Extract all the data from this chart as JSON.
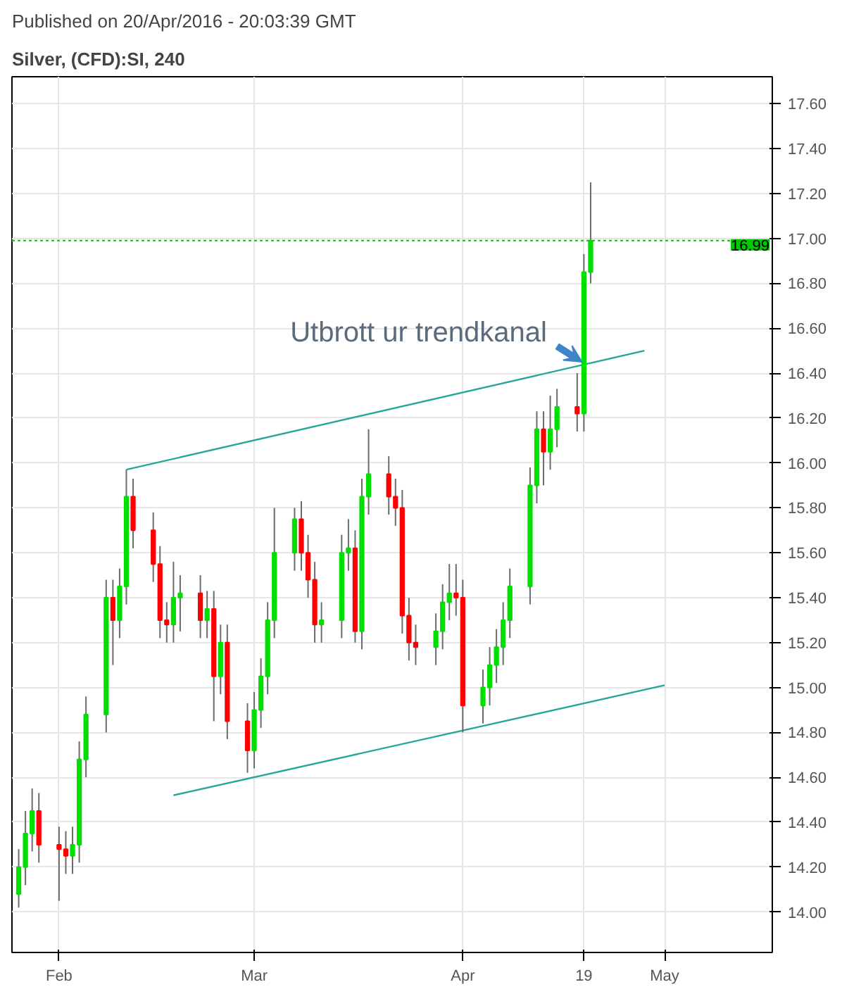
{
  "chart_data": {
    "type": "candlestick",
    "title": "Published on 20/Apr/2016 - 20:03:39 GMT",
    "subtitle": "Silver, (CFD):SI, 240",
    "colors": [
      "#00e000",
      "#00e000",
      "#00e000",
      "#ff0000",
      "#ff0000",
      "#ff0000",
      "#00e000",
      "#00e000",
      "#00e000",
      "#00e000",
      "#ff0000",
      "#00e000",
      "#00e000",
      "#ff0000",
      "#ff0000",
      "#ff0000",
      "#ff0000",
      "#00e000",
      "#00e000",
      "#ff0000",
      "#00e000",
      "#ff0000",
      "#00e000",
      "#ff0000",
      "#ff0000",
      "#00e000",
      "#00e000",
      "#00e000",
      "#00e000",
      "#00e000",
      "#ff0000",
      "#ff0000",
      "#ff0000",
      "#00e000",
      "#00e000",
      "#00e000",
      "#ff0000",
      "#00e000",
      "#00e000",
      "#ff0000",
      "#ff0000",
      "#ff0000",
      "#ff0000",
      "#ff0000",
      "#00e000",
      "#00e000",
      "#00e000",
      "#ff0000",
      "#ff0000",
      "#00e000",
      "#00e000",
      "#00e000",
      "#00e000",
      "#00e000",
      "#00e000",
      "#00e000",
      "#ff0000",
      "#00e000",
      "#00e000",
      "#ff0000",
      "#00e000",
      "#00e000"
    ],
    "x": [
      "2016-01-26",
      "2016-01-27",
      "2016-01-28",
      "2016-01-29",
      "2016-02-01",
      "2016-02-02",
      "2016-02-03",
      "2016-02-04",
      "2016-02-05",
      "2016-02-08",
      "2016-02-09",
      "2016-02-10",
      "2016-02-11",
      "2016-02-12",
      "2016-02-15",
      "2016-02-16",
      "2016-02-17",
      "2016-02-18",
      "2016-02-19",
      "2016-02-22",
      "2016-02-23",
      "2016-02-24",
      "2016-02-25",
      "2016-02-26",
      "2016-02-29",
      "2016-03-01",
      "2016-03-02",
      "2016-03-03",
      "2016-03-04",
      "2016-03-07",
      "2016-03-08",
      "2016-03-09",
      "2016-03-10",
      "2016-03-11",
      "2016-03-14",
      "2016-03-15",
      "2016-03-16",
      "2016-03-17",
      "2016-03-18",
      "2016-03-21",
      "2016-03-22",
      "2016-03-23",
      "2016-03-24",
      "2016-03-25",
      "2016-03-28",
      "2016-03-29",
      "2016-03-30",
      "2016-03-31",
      "2016-04-01",
      "2016-04-04",
      "2016-04-05",
      "2016-04-06",
      "2016-04-07",
      "2016-04-08",
      "2016-04-11",
      "2016-04-12",
      "2016-04-13",
      "2016-04-14",
      "2016-04-15",
      "2016-04-18",
      "2016-04-19",
      "2016-04-20"
    ],
    "ohlc": [
      [
        14.08,
        14.28,
        14.02,
        14.2
      ],
      [
        14.2,
        14.45,
        14.12,
        14.35
      ],
      [
        14.35,
        14.55,
        14.27,
        14.45
      ],
      [
        14.45,
        14.53,
        14.22,
        14.3
      ],
      [
        14.3,
        14.38,
        14.05,
        14.28
      ],
      [
        14.28,
        14.36,
        14.17,
        14.25
      ],
      [
        14.25,
        14.38,
        14.17,
        14.3
      ],
      [
        14.3,
        14.76,
        14.22,
        14.68
      ],
      [
        14.68,
        14.96,
        14.6,
        14.88
      ],
      [
        14.88,
        15.48,
        14.8,
        15.4
      ],
      [
        15.4,
        15.48,
        15.1,
        15.3
      ],
      [
        15.3,
        15.53,
        15.22,
        15.45
      ],
      [
        15.45,
        15.97,
        15.37,
        15.85
      ],
      [
        15.85,
        15.93,
        15.62,
        15.7
      ],
      [
        15.7,
        15.78,
        15.47,
        15.55
      ],
      [
        15.55,
        15.63,
        15.22,
        15.3
      ],
      [
        15.3,
        15.38,
        15.2,
        15.28
      ],
      [
        15.28,
        15.56,
        15.2,
        15.4
      ],
      [
        15.4,
        15.5,
        15.25,
        15.42
      ],
      [
        15.42,
        15.5,
        15.22,
        15.3
      ],
      [
        15.3,
        15.43,
        15.22,
        15.35
      ],
      [
        15.35,
        15.43,
        14.85,
        15.05
      ],
      [
        15.05,
        15.28,
        14.97,
        15.2
      ],
      [
        15.2,
        15.28,
        14.77,
        14.85
      ],
      [
        14.85,
        14.93,
        14.62,
        14.72
      ],
      [
        14.72,
        14.98,
        14.64,
        14.9
      ],
      [
        14.9,
        15.13,
        14.82,
        15.05
      ],
      [
        15.05,
        15.38,
        14.97,
        15.3
      ],
      [
        15.3,
        15.8,
        15.22,
        15.6
      ],
      [
        15.6,
        15.8,
        15.52,
        15.75
      ],
      [
        15.75,
        15.83,
        15.52,
        15.6
      ],
      [
        15.6,
        15.68,
        15.4,
        15.48
      ],
      [
        15.48,
        15.56,
        15.2,
        15.28
      ],
      [
        15.28,
        15.38,
        15.2,
        15.3
      ],
      [
        15.3,
        15.68,
        15.22,
        15.6
      ],
      [
        15.6,
        15.75,
        15.52,
        15.62
      ],
      [
        15.62,
        15.7,
        15.2,
        15.25
      ],
      [
        15.25,
        15.93,
        15.17,
        15.85
      ],
      [
        15.85,
        16.15,
        15.77,
        15.95
      ],
      [
        15.95,
        16.03,
        15.77,
        15.85
      ],
      [
        15.85,
        15.93,
        15.72,
        15.8
      ],
      [
        15.8,
        15.88,
        15.24,
        15.32
      ],
      [
        15.32,
        15.4,
        15.12,
        15.2
      ],
      [
        15.2,
        15.28,
        15.1,
        15.18
      ],
      [
        15.18,
        15.33,
        15.1,
        15.25
      ],
      [
        15.25,
        15.46,
        15.17,
        15.38
      ],
      [
        15.38,
        15.55,
        15.3,
        15.42
      ],
      [
        15.42,
        15.55,
        15.32,
        15.4
      ],
      [
        15.4,
        15.48,
        14.8,
        14.92
      ],
      [
        14.92,
        15.08,
        14.84,
        15.0
      ],
      [
        15.0,
        15.18,
        14.92,
        15.1
      ],
      [
        15.1,
        15.26,
        15.02,
        15.18
      ],
      [
        15.18,
        15.38,
        15.1,
        15.3
      ],
      [
        15.3,
        15.53,
        15.22,
        15.45
      ],
      [
        15.45,
        15.98,
        15.37,
        15.9
      ],
      [
        15.9,
        16.23,
        15.82,
        16.15
      ],
      [
        16.15,
        16.23,
        15.9,
        16.05
      ],
      [
        16.05,
        16.3,
        15.97,
        16.15
      ],
      [
        16.15,
        16.33,
        16.07,
        16.25
      ],
      [
        16.25,
        16.4,
        16.14,
        16.22
      ],
      [
        16.22,
        16.93,
        16.14,
        16.85
      ],
      [
        16.85,
        17.25,
        16.8,
        16.99
      ]
    ],
    "series": [
      {
        "type": "line",
        "color": "#26a69a",
        "x": [
          "2016-02-11",
          "2016-04-28"
        ],
        "values": [
          15.97,
          16.5
        ]
      },
      {
        "type": "line",
        "color": "#26a69a",
        "x": [
          "2016-02-18",
          "2016-05-01"
        ],
        "values": [
          14.52,
          15.01
        ]
      }
    ],
    "ref_lines": [
      {
        "axis": "y",
        "value": 16.99,
        "label": "16.99",
        "color": "#00c800",
        "line_style": "dotted"
      }
    ],
    "annotations": [
      {
        "text": "Utbrott ur trendkanal",
        "x": "2016-04-19",
        "y": 16.45
      }
    ],
    "xlim": [
      "2016-01-25",
      "2016-05-17"
    ],
    "xticks": [
      {
        "value": "2016-02-01",
        "label": "Feb"
      },
      {
        "value": "2016-03-01",
        "label": "Mar"
      },
      {
        "value": "2016-04-01",
        "label": "Apr"
      },
      {
        "value": "2016-04-19",
        "label": "19"
      },
      {
        "value": "2016-05-01",
        "label": "May"
      }
    ],
    "ylim": [
      13.82,
      17.72
    ],
    "yticks": [
      {
        "value": 14.0,
        "label": "14.00"
      },
      {
        "value": 14.2,
        "label": "14.20"
      },
      {
        "value": 14.4,
        "label": "14.40"
      },
      {
        "value": 14.6,
        "label": "14.60"
      },
      {
        "value": 14.8,
        "label": "14.80"
      },
      {
        "value": 15.0,
        "label": "15.00"
      },
      {
        "value": 15.2,
        "label": "15.20"
      },
      {
        "value": 15.4,
        "label": "15.40"
      },
      {
        "value": 15.6,
        "label": "15.60"
      },
      {
        "value": 15.8,
        "label": "15.80"
      },
      {
        "value": 16.0,
        "label": "16.00"
      },
      {
        "value": 16.2,
        "label": "16.20"
      },
      {
        "value": 16.4,
        "label": "16.40"
      },
      {
        "value": 16.6,
        "label": "16.60"
      },
      {
        "value": 16.8,
        "label": "16.80"
      },
      {
        "value": 17.0,
        "label": "17.00"
      },
      {
        "value": 17.2,
        "label": "17.20"
      },
      {
        "value": 17.4,
        "label": "17.40"
      },
      {
        "value": 17.6,
        "label": "17.60"
      }
    ],
    "grid": true
  }
}
